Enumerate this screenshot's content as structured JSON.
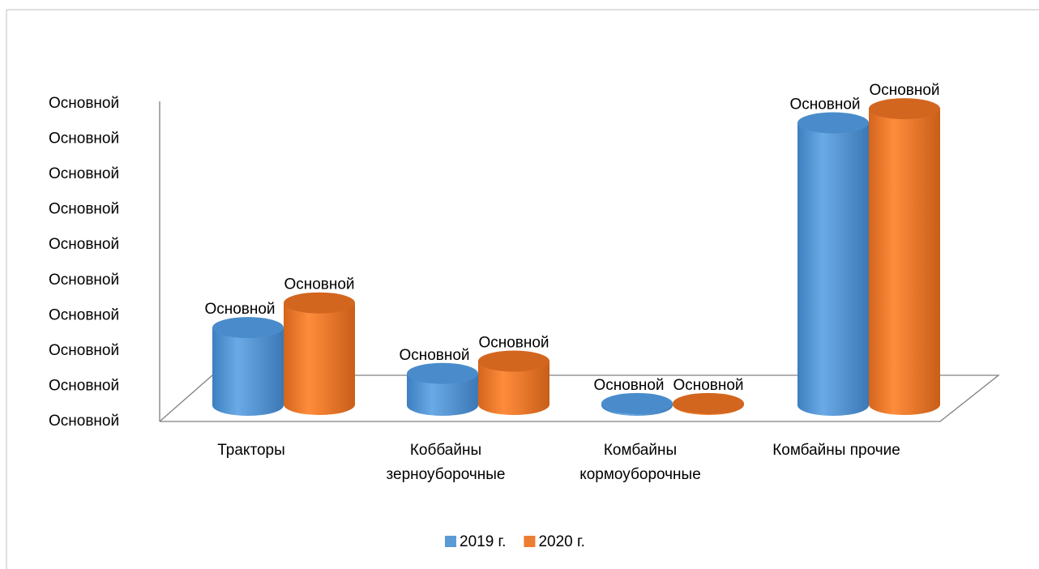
{
  "chart_data": {
    "type": "bar3d",
    "categories": [
      "Тракторы",
      "Коббайны зерноуборочные",
      "Комбайны кормоуборочные",
      "Комбайны прочие"
    ],
    "series": [
      {
        "name": "2019 г.",
        "color": "#5b9bd5",
        "values": [
          2.2,
          0.9,
          0.05,
          8.0
        ],
        "value_labels": [
          "Основной",
          "Основной",
          "Основной",
          "Основной"
        ]
      },
      {
        "name": "2020 г.",
        "color": "#ed7d31",
        "values": [
          2.9,
          1.25,
          0.05,
          8.4
        ],
        "value_labels": [
          "Основной",
          "Основной",
          "Основной",
          "Основной"
        ]
      }
    ],
    "ylim": [
      0,
      9
    ],
    "yticks": [
      {
        "value": 0,
        "label": "Основной"
      },
      {
        "value": 1,
        "label": "Основной"
      },
      {
        "value": 2,
        "label": "Основной"
      },
      {
        "value": 3,
        "label": "Основной"
      },
      {
        "value": 4,
        "label": "Основной"
      },
      {
        "value": 5,
        "label": "Основной"
      },
      {
        "value": 6,
        "label": "Основной"
      },
      {
        "value": 7,
        "label": "Основной"
      },
      {
        "value": 8,
        "label": "Основной"
      },
      {
        "value": 9,
        "label": "Основной"
      }
    ],
    "legend": "bottom"
  }
}
